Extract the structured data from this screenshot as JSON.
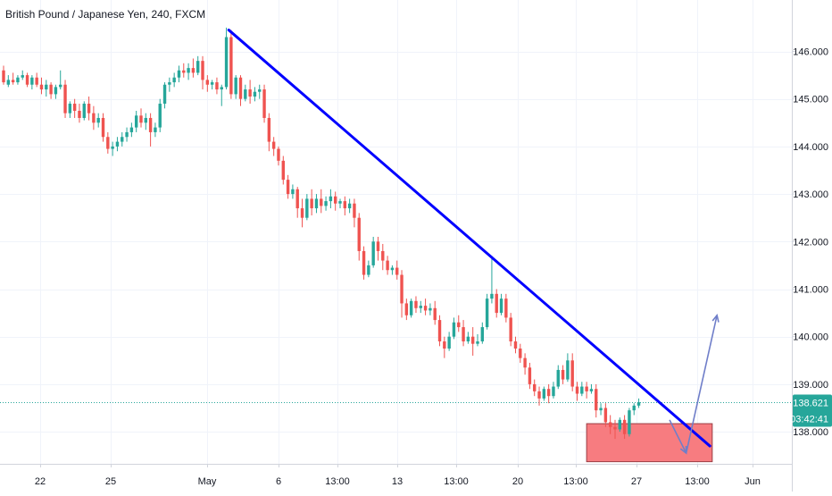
{
  "header": {
    "title": "British Pound / Japanese Yen, 240, FXCM"
  },
  "chart_data": {
    "type": "candlestick",
    "instrument": "British Pound / Japanese Yen",
    "interval": "240",
    "source": "FXCM",
    "ylim": [
      137.5,
      146.95
    ],
    "y_ticks": [
      "146.000",
      "145.000",
      "144.000",
      "143.000",
      "142.000",
      "141.000",
      "140.000",
      "139.000",
      "138.000"
    ],
    "x_ticks": [
      "22",
      "25",
      "May",
      "6",
      "13:00",
      "13",
      "13:00",
      "20",
      "13:00",
      "27",
      "13:00",
      "Jun"
    ],
    "last_price": {
      "value": "138.621",
      "color": "#26a69a"
    },
    "countdown": "03:42:41",
    "colors": {
      "up": "#26a69a",
      "down": "#ef5350",
      "trendline": "#0000ff",
      "zone": "#f77c80",
      "arrow": "#6f7ec9",
      "axis_text": "#131722",
      "grid": "#f0f3fa"
    },
    "candles": [
      [
        145.6,
        145.7,
        145.35,
        145.3
      ],
      [
        145.3,
        145.5,
        145.4,
        145.25
      ],
      [
        145.4,
        145.55,
        145.35,
        145.3
      ],
      [
        145.35,
        145.5,
        145.45,
        145.3
      ],
      [
        145.45,
        145.6,
        145.5,
        145.4
      ],
      [
        145.5,
        145.55,
        145.3,
        145.25
      ],
      [
        145.3,
        145.5,
        145.45,
        145.2
      ],
      [
        145.45,
        145.55,
        145.3,
        145.25
      ],
      [
        145.3,
        145.45,
        145.2,
        145.1
      ],
      [
        145.2,
        145.4,
        145.3,
        145.05
      ],
      [
        145.3,
        145.35,
        145.1,
        145.0
      ],
      [
        145.1,
        145.3,
        145.25,
        145.0
      ],
      [
        145.25,
        145.6,
        145.3,
        145.2
      ],
      [
        145.3,
        145.4,
        144.7,
        144.6
      ],
      [
        144.7,
        144.95,
        144.9,
        144.6
      ],
      [
        144.9,
        145.0,
        144.75,
        144.6
      ],
      [
        144.75,
        144.9,
        144.6,
        144.5
      ],
      [
        144.6,
        144.95,
        144.9,
        144.55
      ],
      [
        144.9,
        145.05,
        144.7,
        144.55
      ],
      [
        144.7,
        144.85,
        144.5,
        144.35
      ],
      [
        144.5,
        144.7,
        144.6,
        144.4
      ],
      [
        144.6,
        144.7,
        144.2,
        144.1
      ],
      [
        144.2,
        144.3,
        143.95,
        143.85
      ],
      [
        143.95,
        144.1,
        144.0,
        143.8
      ],
      [
        144.0,
        144.2,
        144.1,
        143.9
      ],
      [
        144.1,
        144.3,
        144.2,
        144.0
      ],
      [
        144.2,
        144.4,
        144.3,
        144.1
      ],
      [
        144.3,
        144.5,
        144.4,
        144.2
      ],
      [
        144.4,
        144.75,
        144.65,
        144.3
      ],
      [
        144.65,
        144.8,
        144.5,
        144.4
      ],
      [
        144.5,
        144.7,
        144.6,
        144.35
      ],
      [
        144.6,
        144.7,
        144.3,
        144.0
      ],
      [
        144.3,
        144.5,
        144.4,
        144.2
      ],
      [
        144.4,
        145.0,
        144.9,
        144.3
      ],
      [
        144.9,
        145.35,
        145.3,
        144.8
      ],
      [
        145.3,
        145.45,
        145.35,
        145.15
      ],
      [
        145.35,
        145.55,
        145.45,
        145.25
      ],
      [
        145.45,
        145.7,
        145.6,
        145.35
      ],
      [
        145.6,
        145.75,
        145.55,
        145.45
      ],
      [
        145.55,
        145.75,
        145.65,
        145.4
      ],
      [
        145.65,
        145.85,
        145.55,
        145.45
      ],
      [
        145.55,
        145.9,
        145.8,
        145.5
      ],
      [
        145.8,
        145.9,
        145.4,
        145.2
      ],
      [
        145.4,
        145.5,
        145.3,
        145.15
      ],
      [
        145.3,
        145.4,
        145.35,
        145.2
      ],
      [
        145.35,
        145.45,
        145.2,
        145.1
      ],
      [
        145.2,
        145.3,
        145.25,
        144.85
      ],
      [
        145.25,
        146.5,
        146.3,
        145.2
      ],
      [
        146.3,
        146.45,
        145.1,
        145.0
      ],
      [
        145.1,
        145.5,
        145.45,
        145.0
      ],
      [
        145.45,
        145.5,
        145.0,
        144.85
      ],
      [
        145.0,
        145.3,
        145.2,
        144.95
      ],
      [
        145.2,
        145.4,
        145.05,
        144.9
      ],
      [
        145.05,
        145.25,
        145.15,
        144.95
      ],
      [
        145.15,
        145.3,
        145.2,
        145.0
      ],
      [
        145.2,
        145.3,
        144.6,
        144.5
      ],
      [
        144.6,
        144.7,
        144.1,
        143.9
      ],
      [
        144.1,
        144.2,
        143.95,
        143.8
      ],
      [
        143.95,
        144.0,
        143.7,
        143.6
      ],
      [
        143.7,
        143.8,
        143.3,
        143.2
      ],
      [
        143.3,
        143.4,
        143.0,
        142.9
      ],
      [
        143.0,
        143.2,
        143.1,
        142.9
      ],
      [
        143.1,
        143.15,
        142.7,
        142.5
      ],
      [
        142.7,
        142.9,
        142.5,
        142.3
      ],
      [
        142.5,
        143.0,
        142.9,
        142.45
      ],
      [
        142.9,
        143.1,
        142.7,
        142.55
      ],
      [
        142.7,
        143.0,
        142.9,
        142.6
      ],
      [
        142.9,
        143.1,
        142.75,
        142.6
      ],
      [
        142.75,
        142.95,
        142.85,
        142.65
      ],
      [
        142.85,
        143.1,
        142.95,
        142.7
      ],
      [
        142.95,
        143.05,
        142.8,
        142.65
      ],
      [
        142.8,
        142.9,
        142.85,
        142.7
      ],
      [
        142.85,
        142.95,
        142.7,
        142.55
      ],
      [
        142.7,
        142.9,
        142.8,
        142.6
      ],
      [
        142.8,
        142.9,
        142.5,
        142.3
      ],
      [
        142.5,
        142.6,
        141.8,
        141.6
      ],
      [
        141.8,
        141.9,
        141.3,
        141.2
      ],
      [
        141.3,
        141.6,
        141.5,
        141.25
      ],
      [
        141.5,
        142.1,
        142.0,
        141.45
      ],
      [
        142.0,
        142.1,
        141.8,
        141.6
      ],
      [
        141.8,
        141.95,
        141.6,
        141.4
      ],
      [
        141.6,
        141.7,
        141.4,
        141.3
      ],
      [
        141.4,
        141.5,
        141.45,
        141.3
      ],
      [
        141.45,
        141.6,
        141.3,
        141.2
      ],
      [
        141.3,
        141.4,
        140.7,
        140.4
      ],
      [
        140.7,
        140.8,
        140.45,
        140.35
      ],
      [
        140.45,
        140.8,
        140.75,
        140.4
      ],
      [
        140.75,
        140.85,
        140.6,
        140.5
      ],
      [
        140.6,
        140.75,
        140.65,
        140.5
      ],
      [
        140.65,
        140.8,
        140.55,
        140.45
      ],
      [
        140.55,
        140.7,
        140.6,
        140.45
      ],
      [
        140.6,
        140.75,
        140.35,
        140.25
      ],
      [
        140.35,
        140.45,
        139.9,
        139.8
      ],
      [
        139.9,
        140.0,
        139.75,
        139.55
      ],
      [
        139.75,
        140.1,
        140.0,
        139.7
      ],
      [
        140.0,
        140.4,
        140.3,
        139.95
      ],
      [
        140.3,
        140.45,
        140.2,
        140.1
      ],
      [
        140.2,
        140.35,
        139.9,
        139.8
      ],
      [
        139.9,
        140.1,
        140.0,
        139.85
      ],
      [
        140.0,
        140.2,
        139.85,
        139.6
      ],
      [
        139.85,
        140.05,
        139.9,
        139.8
      ],
      [
        139.9,
        140.3,
        140.2,
        139.85
      ],
      [
        140.2,
        140.9,
        140.8,
        140.15
      ],
      [
        140.8,
        141.7,
        140.9,
        140.7
      ],
      [
        140.9,
        141.0,
        140.5,
        140.4
      ],
      [
        140.5,
        140.9,
        140.8,
        140.45
      ],
      [
        140.8,
        140.9,
        140.4,
        140.3
      ],
      [
        140.4,
        140.5,
        139.9,
        139.8
      ],
      [
        139.9,
        140.0,
        139.75,
        139.65
      ],
      [
        139.75,
        139.85,
        139.55,
        139.45
      ],
      [
        139.55,
        139.65,
        139.35,
        139.2
      ],
      [
        139.35,
        139.45,
        139.0,
        138.9
      ],
      [
        139.0,
        139.1,
        138.85,
        138.75
      ],
      [
        138.85,
        138.95,
        138.7,
        138.55
      ],
      [
        138.7,
        138.95,
        138.9,
        138.65
      ],
      [
        138.9,
        139.0,
        138.75,
        138.6
      ],
      [
        138.75,
        139.05,
        138.95,
        138.7
      ],
      [
        138.95,
        139.4,
        139.3,
        138.9
      ],
      [
        139.3,
        139.4,
        139.1,
        139.0
      ],
      [
        139.1,
        139.65,
        139.5,
        139.05
      ],
      [
        139.5,
        139.65,
        138.95,
        138.85
      ],
      [
        138.95,
        139.05,
        138.8,
        138.65
      ],
      [
        138.8,
        139.05,
        138.95,
        138.75
      ],
      [
        138.95,
        139.05,
        138.85,
        138.7
      ],
      [
        138.85,
        139.0,
        138.9,
        138.8
      ],
      [
        138.9,
        139.0,
        138.45,
        138.3
      ],
      [
        138.45,
        138.6,
        138.5,
        138.35
      ],
      [
        138.5,
        138.6,
        138.2,
        138.1
      ],
      [
        138.2,
        138.35,
        138.1,
        137.95
      ],
      [
        138.1,
        138.25,
        138.05,
        137.85
      ],
      [
        138.05,
        138.3,
        138.25,
        138.0
      ],
      [
        138.25,
        138.35,
        137.95,
        137.85
      ],
      [
        137.95,
        138.5,
        138.45,
        137.9
      ],
      [
        138.45,
        138.6,
        138.55,
        138.35
      ],
      [
        138.55,
        138.7,
        138.62,
        138.5
      ]
    ],
    "trendline": {
      "from": {
        "index": 47.5,
        "value": 146.45
      },
      "to": {
        "index": 149.0,
        "value": 137.7
      }
    },
    "support_zone": {
      "from_index": 123,
      "to_index": 149.5,
      "top": 138.17,
      "bottom": 137.37
    },
    "arrows": [
      {
        "from": {
          "index": 140.5,
          "value": 138.25
        },
        "to": {
          "index": 144.0,
          "value": 137.55
        }
      },
      {
        "from": {
          "index": 144.0,
          "value": 137.55
        },
        "to": {
          "index": 150.5,
          "value": 140.45
        }
      }
    ]
  }
}
